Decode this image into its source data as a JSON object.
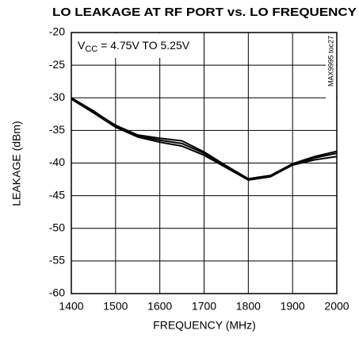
{
  "chart_data": {
    "type": "line",
    "title": "LO LEAKAGE AT RF PORT vs. LO FREQUENCY",
    "xlabel": "FREQUENCY (MHz)",
    "ylabel": "LEAKAGE (dBm)",
    "annotation": {
      "main": "V",
      "subscript": "CC",
      "text": " = 4.75V TO 5.25V"
    },
    "note": "MAX9995 toc27",
    "x": [
      1400,
      1450,
      1500,
      1550,
      1600,
      1650,
      1700,
      1750,
      1800,
      1850,
      1900,
      1950,
      2000
    ],
    "series": [
      {
        "color": "#000000",
        "values": [
          -30,
          -32,
          -34.3,
          -35.8,
          -36.5,
          -37,
          -38.5,
          -40.5,
          -42.5,
          -42,
          -40.2,
          -39.2,
          -38.5
        ]
      },
      {
        "color": "#000000",
        "values": [
          -30.1,
          -32.1,
          -34.2,
          -35.7,
          -36.2,
          -36.6,
          -38.3,
          -40.4,
          -42.4,
          -41.9,
          -40.1,
          -39,
          -38.2
        ]
      },
      {
        "color": "#000000",
        "values": [
          -30.2,
          -32.3,
          -34.5,
          -36,
          -36.8,
          -37.4,
          -38.8,
          -40.7,
          -42.6,
          -42.1,
          -40.3,
          -39.5,
          -39
        ]
      }
    ],
    "xlim": [
      1400,
      2000
    ],
    "xticks": [
      1400,
      1500,
      1600,
      1700,
      1800,
      1900,
      2000
    ],
    "ylim": [
      -60,
      -20
    ],
    "yticks": [
      -60,
      -55,
      -50,
      -45,
      -40,
      -35,
      -30,
      -25,
      -20
    ],
    "grid": true
  }
}
